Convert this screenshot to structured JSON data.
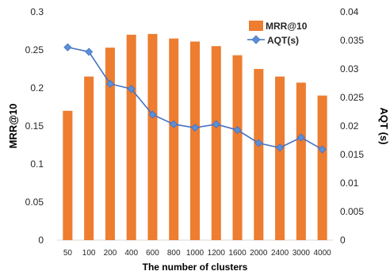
{
  "chart_data": {
    "type": "bar",
    "categories": [
      "50",
      "100",
      "200",
      "400",
      "600",
      "800",
      "1000",
      "1200",
      "1600",
      "2000",
      "2400",
      "3000",
      "4000"
    ],
    "xlabel": "The number of clusters",
    "series": [
      {
        "name": "MRR@10",
        "type": "bar",
        "axis": "left",
        "color": "#ED7D31",
        "values": [
          0.17,
          0.215,
          0.253,
          0.27,
          0.271,
          0.265,
          0.261,
          0.255,
          0.243,
          0.225,
          0.215,
          0.207,
          0.19
        ]
      },
      {
        "name": "AQT(s)",
        "type": "line",
        "axis": "right",
        "color": "#4472C4",
        "marker": "diamond",
        "values": [
          0.0338,
          0.033,
          0.0274,
          0.0265,
          0.022,
          0.0203,
          0.0197,
          0.0203,
          0.0193,
          0.017,
          0.0162,
          0.018,
          0.0159
        ]
      }
    ],
    "y_left": {
      "label": "MRR@10",
      "ylim": [
        0,
        0.3
      ],
      "ticks": [
        "0",
        "0.05",
        "0.1",
        "0.15",
        "0.2",
        "0.25",
        "0.3"
      ]
    },
    "y_right": {
      "label": "AQT (s)",
      "ylim": [
        0,
        0.04
      ],
      "ticks": [
        "0",
        "0.005",
        "0.01",
        "0.015",
        "0.02",
        "0.025",
        "0.03",
        "0.035",
        "0.04"
      ]
    },
    "grid": false,
    "legend": "top-right"
  }
}
